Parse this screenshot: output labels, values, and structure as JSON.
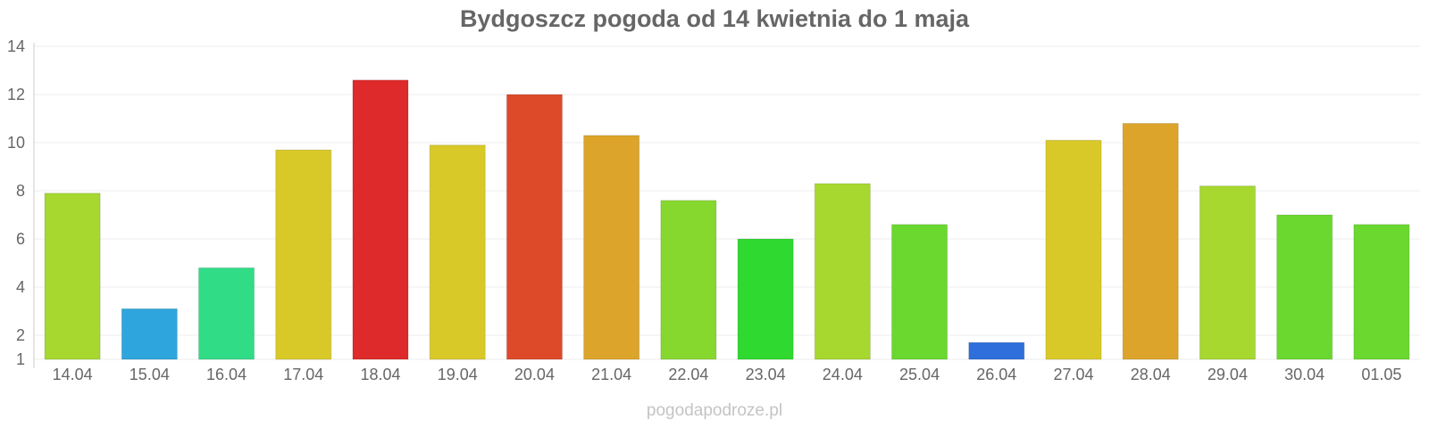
{
  "chart_data": {
    "type": "bar",
    "title": "Bydgoszcz pogoda od 14 kwietnia do 1 maja",
    "xlabel": "",
    "ylabel": "",
    "categories": [
      "14.04",
      "15.04",
      "16.04",
      "17.04",
      "18.04",
      "19.04",
      "20.04",
      "21.04",
      "22.04",
      "23.04",
      "24.04",
      "25.04",
      "26.04",
      "27.04",
      "28.04",
      "29.04",
      "30.04",
      "01.05"
    ],
    "values": [
      7.9,
      3.1,
      4.8,
      9.7,
      12.6,
      9.9,
      12.0,
      10.3,
      7.6,
      6.0,
      8.3,
      6.6,
      1.7,
      10.1,
      10.8,
      8.2,
      7.0,
      6.6
    ],
    "colors": [
      "#a6d82f",
      "#2fa5dd",
      "#31dc87",
      "#d9c928",
      "#de2a2a",
      "#d9c928",
      "#dd4a2a",
      "#dca42a",
      "#86d82f",
      "#2fd92f",
      "#a6d82f",
      "#6ad82f",
      "#2e6fdb",
      "#d9c928",
      "#dca42a",
      "#a6d82f",
      "#6ad82f",
      "#6ad82f"
    ],
    "ylim": [
      1,
      14
    ],
    "yticks": [
      1,
      2,
      4,
      6,
      8,
      10,
      12,
      14
    ],
    "grid": true,
    "legend": "none"
  },
  "watermark": "pogodapodroze.pl"
}
